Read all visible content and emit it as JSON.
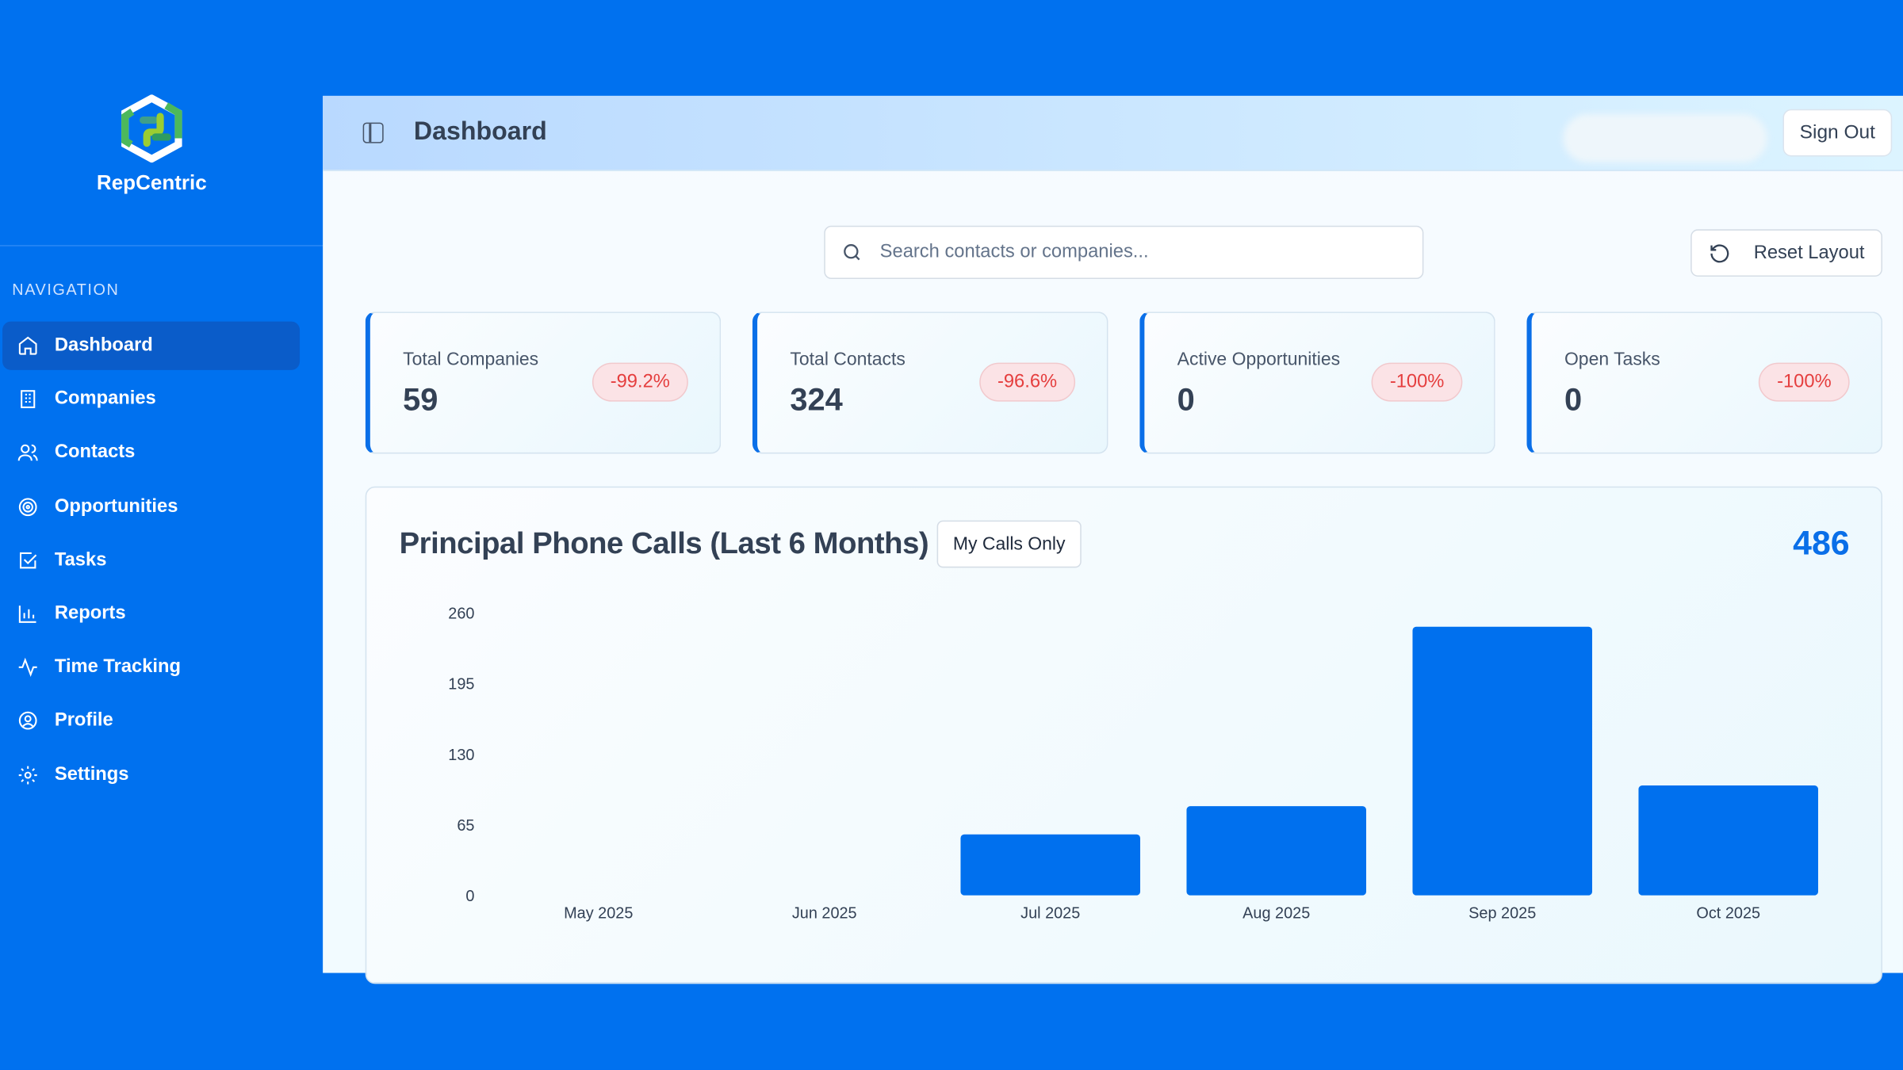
{
  "brand": {
    "name": "RepCentric"
  },
  "sidebar": {
    "section_label": "NAVIGATION",
    "items": [
      {
        "label": "Dashboard",
        "icon": "home-icon",
        "active": true
      },
      {
        "label": "Companies",
        "icon": "building-icon"
      },
      {
        "label": "Contacts",
        "icon": "users-icon"
      },
      {
        "label": "Opportunities",
        "icon": "target-icon"
      },
      {
        "label": "Tasks",
        "icon": "checkbox-icon"
      },
      {
        "label": "Reports",
        "icon": "bar-chart-icon"
      },
      {
        "label": "Time Tracking",
        "icon": "activity-icon"
      },
      {
        "label": "Profile",
        "icon": "user-circle-icon"
      },
      {
        "label": "Settings",
        "icon": "gear-icon"
      }
    ]
  },
  "header": {
    "title": "Dashboard",
    "sign_out": "Sign Out"
  },
  "search": {
    "placeholder": "Search contacts or companies...",
    "value": ""
  },
  "toolbar": {
    "reset_layout": "Reset Layout"
  },
  "stats": [
    {
      "label": "Total Companies",
      "value": "59",
      "change": "-99.2%"
    },
    {
      "label": "Total Contacts",
      "value": "324",
      "change": "-96.6%"
    },
    {
      "label": "Active Opportunities",
      "value": "0",
      "change": "-100%"
    },
    {
      "label": "Open Tasks",
      "value": "0",
      "change": "-100%"
    }
  ],
  "colors": {
    "accent": "#0071ef",
    "negative": "#e53e3e",
    "bar": "#0070ee"
  },
  "chart_data": {
    "type": "bar",
    "title": "Principal Phone Calls (Last 6 Months)",
    "filter_button": "My Calls Only",
    "total": "486",
    "categories": [
      "May 2025",
      "Jun 2025",
      "Jul 2025",
      "Aug 2025",
      "Sep 2025",
      "Oct 2025"
    ],
    "values": [
      0,
      0,
      56,
      82,
      247,
      101
    ],
    "ylim": [
      0,
      260
    ],
    "yticks": [
      0,
      65,
      130,
      195,
      260
    ],
    "grid": false,
    "xlabel": "",
    "ylabel": ""
  }
}
